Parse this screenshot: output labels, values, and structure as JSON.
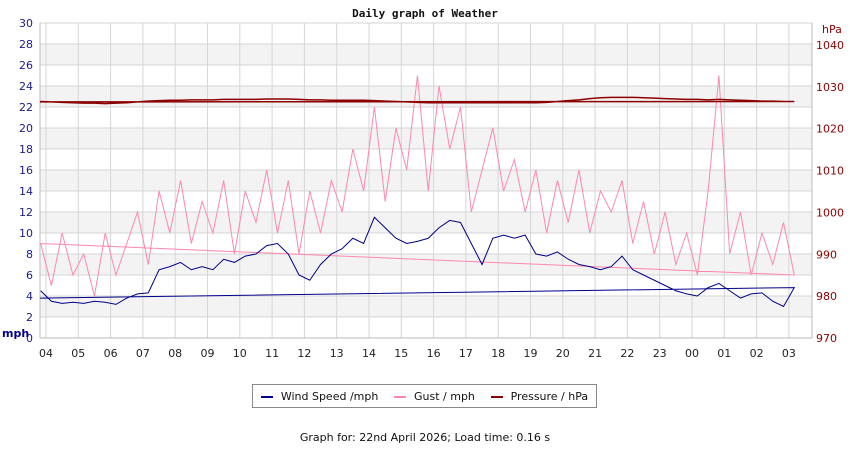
{
  "chart_data": {
    "type": "line",
    "title": "Daily graph of Weather",
    "y_left": {
      "label": "mph",
      "range": [
        0,
        30
      ],
      "ticks": [
        0,
        2,
        4,
        6,
        8,
        10,
        12,
        14,
        16,
        18,
        20,
        22,
        24,
        26,
        28,
        30
      ]
    },
    "y_right": {
      "label": "hPa",
      "range": [
        970,
        1045
      ],
      "ticks": [
        970,
        980,
        990,
        1000,
        1010,
        1020,
        1030,
        1040
      ]
    },
    "x_ticks": [
      "04",
      "05",
      "06",
      "07",
      "08",
      "09",
      "10",
      "11",
      "12",
      "13",
      "14",
      "15",
      "16",
      "17",
      "18",
      "19",
      "20",
      "21",
      "22",
      "23",
      "00",
      "01",
      "02",
      "03"
    ],
    "grid": true,
    "legend_placement": "bottom",
    "x": [
      "03:50",
      "04:10",
      "04:30",
      "04:50",
      "05:10",
      "05:30",
      "05:50",
      "06:10",
      "06:30",
      "06:50",
      "07:10",
      "07:30",
      "07:50",
      "08:10",
      "08:30",
      "08:50",
      "09:10",
      "09:30",
      "09:50",
      "10:10",
      "10:30",
      "10:50",
      "11:10",
      "11:30",
      "11:50",
      "12:10",
      "12:30",
      "12:50",
      "13:10",
      "13:30",
      "13:50",
      "14:10",
      "14:30",
      "14:50",
      "15:10",
      "15:30",
      "15:50",
      "16:10",
      "16:30",
      "16:50",
      "17:10",
      "17:30",
      "17:50",
      "18:10",
      "18:30",
      "18:50",
      "19:10",
      "19:30",
      "19:50",
      "20:10",
      "20:30",
      "20:50",
      "21:10",
      "21:30",
      "21:50",
      "22:10",
      "22:30",
      "22:50",
      "23:10",
      "23:30",
      "23:50",
      "00:10",
      "00:30",
      "00:50",
      "01:10",
      "01:30",
      "01:50",
      "02:10",
      "02:30",
      "02:50",
      "03:10",
      "03:30"
    ],
    "series": [
      {
        "name": "Wind Speed /mph",
        "axis": "left",
        "color": "#00008b",
        "values": [
          4.5,
          3.5,
          3.3,
          3.4,
          3.3,
          3.5,
          3.4,
          3.2,
          3.8,
          4.2,
          4.3,
          6.5,
          6.8,
          7.2,
          6.5,
          6.8,
          6.5,
          7.5,
          7.2,
          7.8,
          8.0,
          8.8,
          9.0,
          8.0,
          6.0,
          5.5,
          7.0,
          8.0,
          8.5,
          9.5,
          9.0,
          11.5,
          10.5,
          9.5,
          9.0,
          9.2,
          9.5,
          10.5,
          11.2,
          11.0,
          9.0,
          7.0,
          9.5,
          9.8,
          9.5,
          9.8,
          8.0,
          7.8,
          8.2,
          7.5,
          7.0,
          6.8,
          6.5,
          6.8,
          7.8,
          6.5,
          6.0,
          5.5,
          5.0,
          4.5,
          4.2,
          4.0,
          4.8,
          5.2,
          4.5,
          3.8,
          4.2,
          4.3,
          3.5,
          3.0,
          4.8,
          3.8
        ]
      },
      {
        "name": "Gust / mph",
        "axis": "left",
        "color": "#ff88aa",
        "values": [
          9,
          5,
          10,
          6,
          8,
          4,
          10,
          6,
          9,
          12,
          7,
          14,
          10,
          15,
          9,
          13,
          10,
          15,
          8,
          14,
          11,
          16,
          10,
          15,
          8,
          14,
          10,
          15,
          12,
          18,
          14,
          22,
          13,
          20,
          16,
          25,
          14,
          24,
          18,
          22,
          12,
          16,
          20,
          14,
          17,
          12,
          16,
          10,
          15,
          11,
          16,
          10,
          14,
          12,
          15,
          9,
          13,
          8,
          12,
          7,
          10,
          6,
          14,
          25,
          8,
          12,
          6,
          10,
          7,
          11,
          6,
          9
        ]
      },
      {
        "name": "Pressure / hPa",
        "axis": "right",
        "color": "#8b0000",
        "values": [
          1026.5,
          1026.4,
          1026.3,
          1026.2,
          1026.1,
          1026.1,
          1026.0,
          1026.1,
          1026.2,
          1026.4,
          1026.6,
          1026.7,
          1026.8,
          1026.8,
          1026.9,
          1026.9,
          1026.9,
          1027.0,
          1027.0,
          1027.0,
          1027.0,
          1027.1,
          1027.1,
          1027.1,
          1027.0,
          1026.9,
          1026.9,
          1026.8,
          1026.8,
          1026.8,
          1026.8,
          1026.7,
          1026.6,
          1026.5,
          1026.4,
          1026.3,
          1026.2,
          1026.2,
          1026.2,
          1026.2,
          1026.2,
          1026.2,
          1026.2,
          1026.2,
          1026.2,
          1026.2,
          1026.2,
          1026.3,
          1026.5,
          1026.7,
          1026.9,
          1027.2,
          1027.4,
          1027.5,
          1027.5,
          1027.5,
          1027.4,
          1027.3,
          1027.2,
          1027.1,
          1027.0,
          1027.0,
          1026.9,
          1027.0,
          1026.9,
          1026.8,
          1026.7,
          1026.6,
          1026.6,
          1026.5,
          1026.5,
          1026.4
        ]
      }
    ]
  },
  "footer": "Graph for: 22nd April 2026; Load time: 0.16 s"
}
